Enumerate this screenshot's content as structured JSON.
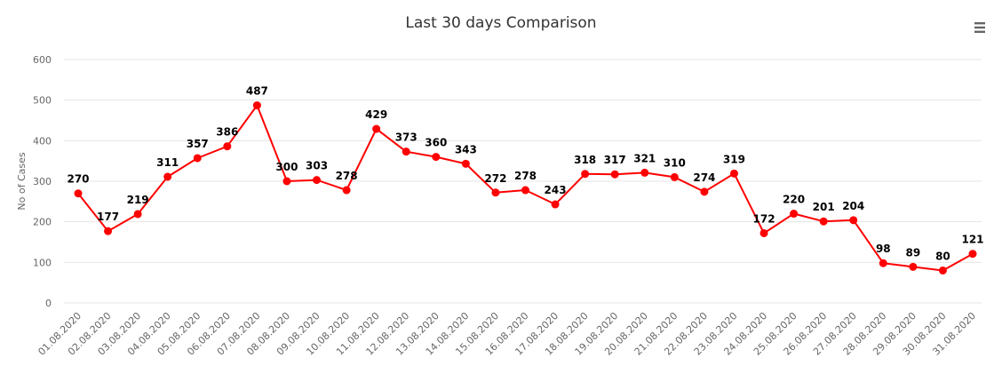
{
  "chart_data": {
    "type": "line",
    "title": "Last 30 days Comparison",
    "ylabel": "No of Cases",
    "ylim": [
      0,
      600
    ],
    "yticks": [
      0,
      100,
      200,
      300,
      400,
      500,
      600
    ],
    "grid": true,
    "categories": [
      "01.08.2020",
      "02.08.2020",
      "03.08.2020",
      "04.08.2020",
      "05.08.2020",
      "06.08.2020",
      "07.08.2020",
      "08.08.2020",
      "09.08.2020",
      "10.08.2020",
      "11.08.2020",
      "12.08.2020",
      "13.08.2020",
      "14.08.2020",
      "15.08.2020",
      "16.08.2020",
      "17.08.2020",
      "18.08.2020",
      "19.08.2020",
      "20.08.2020",
      "21.08.2020",
      "22.08.2020",
      "23.08.2020",
      "24.08.2020",
      "25.08.2020",
      "26.08.2020",
      "27.08.2020",
      "28.08.2020",
      "29.08.2020",
      "30.08.2020",
      "31.08.2020"
    ],
    "series": [
      {
        "color": "#ff0000",
        "values": [
          270,
          177,
          219,
          311,
          357,
          386,
          487,
          300,
          303,
          278,
          429,
          373,
          360,
          343,
          272,
          278,
          243,
          318,
          317,
          321,
          310,
          274,
          319,
          172,
          220,
          201,
          204,
          98,
          89,
          80,
          121
        ]
      }
    ]
  },
  "menu": {
    "icon": "hamburger-menu-icon"
  }
}
